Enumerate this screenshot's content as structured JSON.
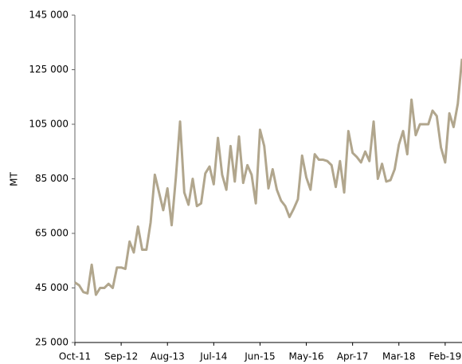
{
  "chart_data": {
    "type": "line",
    "y_label": "MT",
    "categories": [
      "Oct-11",
      null,
      null,
      null,
      null,
      null,
      null,
      null,
      null,
      null,
      null,
      "Sep-12",
      null,
      null,
      null,
      null,
      null,
      null,
      null,
      null,
      null,
      null,
      "Aug-13",
      null,
      null,
      null,
      null,
      null,
      null,
      null,
      null,
      null,
      null,
      "Jul-14",
      null,
      null,
      null,
      null,
      null,
      null,
      null,
      null,
      null,
      null,
      "Jun-15",
      null,
      null,
      null,
      null,
      null,
      null,
      null,
      null,
      null,
      null,
      "May-16",
      null,
      null,
      null,
      null,
      null,
      null,
      null,
      null,
      null,
      null,
      "Apr-17",
      null,
      null,
      null,
      null,
      null,
      null,
      null,
      null,
      null,
      null,
      "Mar-18",
      null,
      null,
      null,
      null,
      null,
      null,
      null,
      null,
      null,
      null,
      "Feb-19",
      null,
      null,
      null,
      null
    ],
    "series": [
      {
        "name": "MT",
        "color": "#b1a68d",
        "values": [
          47000,
          46000,
          43500,
          43000,
          53500,
          42500,
          45000,
          45000,
          46500,
          45000,
          52500,
          52500,
          52000,
          62000,
          58000,
          67500,
          59000,
          59000,
          69000,
          86500,
          80000,
          73500,
          81500,
          68000,
          85500,
          106000,
          80000,
          75500,
          85000,
          75000,
          76000,
          87000,
          89500,
          83000,
          100000,
          86500,
          81000,
          97000,
          84000,
          100500,
          83500,
          90000,
          86500,
          76000,
          103000,
          97000,
          81500,
          88500,
          81000,
          77000,
          75000,
          71000,
          74000,
          77500,
          93500,
          85500,
          81000,
          94000,
          92000,
          92000,
          91500,
          90000,
          82000,
          91500,
          80000,
          102500,
          94500,
          93000,
          91000,
          95000,
          91500,
          106000,
          85000,
          90500,
          84000,
          84500,
          88500,
          97500,
          102500,
          94000,
          114000,
          101000,
          105000,
          105000,
          105000,
          110000,
          108000,
          96500,
          91000,
          109000,
          104000,
          112500,
          129000
        ]
      }
    ],
    "ylim": [
      25000,
      145000
    ],
    "yticks": [
      {
        "value": 25000,
        "label": "25 000"
      },
      {
        "value": 45000,
        "label": "45 000"
      },
      {
        "value": 65000,
        "label": "65 000"
      },
      {
        "value": 85000,
        "label": "85 000"
      },
      {
        "value": 105000,
        "label": "105 000"
      },
      {
        "value": 125000,
        "label": "125 000"
      },
      {
        "value": 145000,
        "label": "145 000"
      }
    ]
  }
}
